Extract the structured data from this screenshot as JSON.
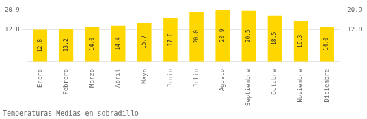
{
  "chart_data": {
    "type": "bar",
    "title": "Temperaturas Medias en sobradillo",
    "categories": [
      "Enero",
      "Febrero",
      "Marzo",
      "Abril",
      "Mayo",
      "Junio",
      "Julio",
      "Agosto",
      "Septiembre",
      "Octubre",
      "Noviembre",
      "Diciembre"
    ],
    "values": [
      12.8,
      13.2,
      14.0,
      14.4,
      15.7,
      17.6,
      20.0,
      20.9,
      20.5,
      18.5,
      16.3,
      14.0
    ],
    "value_labels": [
      "12.8",
      "13.2",
      "14.0",
      "14.4",
      "15.7",
      "17.6",
      "20.0",
      "20.9",
      "20.5",
      "18.5",
      "16.3",
      "14.0"
    ],
    "color": "#FFD700",
    "ylim": [
      0,
      22.5
    ],
    "yticks": [
      12.8,
      20.9
    ],
    "y2lim": [
      0,
      22.5
    ],
    "y2ticks": [
      12.8,
      20.9
    ],
    "grid": true,
    "data_labels": true
  }
}
